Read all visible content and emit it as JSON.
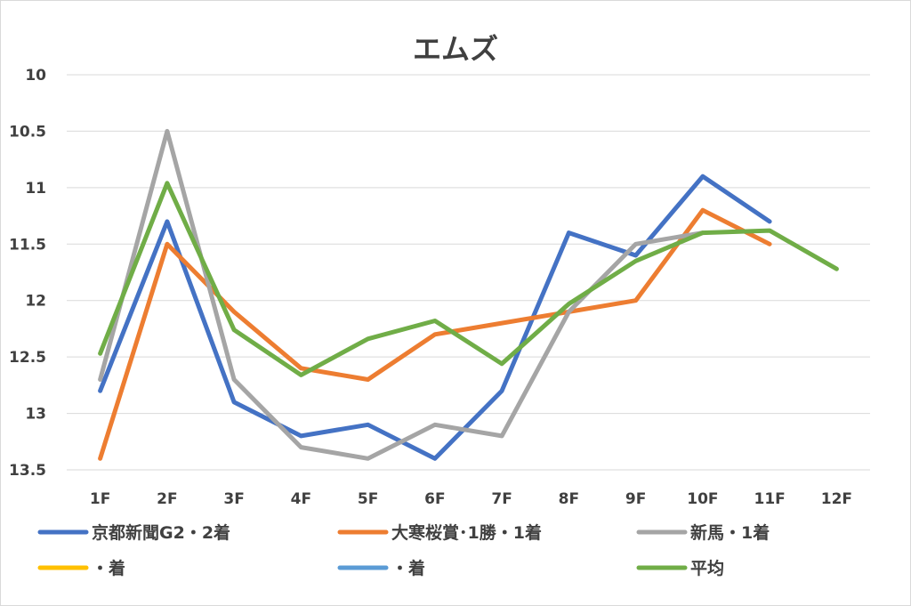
{
  "chart_data": {
    "type": "line",
    "title": "エムズ",
    "xlabel": "",
    "ylabel": "",
    "categories": [
      "1F",
      "2F",
      "3F",
      "4F",
      "5F",
      "6F",
      "7F",
      "8F",
      "9F",
      "10F",
      "11F",
      "12F"
    ],
    "ylim": [
      10,
      13.5
    ],
    "y_inverted": true,
    "y_ticks": [
      "10",
      "10.5",
      "11",
      "11.5",
      "12",
      "12.5",
      "13",
      "13.5"
    ],
    "grid": true,
    "legend_position": "bottom",
    "series": [
      {
        "name": "京都新聞G2・2着",
        "color": "#4472C4",
        "values": [
          12.8,
          11.3,
          12.9,
          13.2,
          13.1,
          13.4,
          12.8,
          11.4,
          11.6,
          10.9,
          11.3,
          null
        ]
      },
      {
        "name": "大寒桜賞･1勝・1着",
        "color": "#ED7D31",
        "values": [
          13.4,
          11.5,
          12.1,
          12.6,
          12.7,
          12.3,
          12.2,
          12.1,
          12.0,
          11.2,
          11.5,
          null
        ]
      },
      {
        "name": "新馬・1着",
        "color": "#A5A5A5",
        "values": [
          12.7,
          10.5,
          12.7,
          13.3,
          13.4,
          13.1,
          13.2,
          12.1,
          11.5,
          11.4,
          null,
          null
        ]
      },
      {
        "name": "・着",
        "color": "#FFC000",
        "values": [
          null,
          null,
          null,
          null,
          null,
          null,
          null,
          null,
          null,
          null,
          null,
          null
        ]
      },
      {
        "name": "・着",
        "color": "#5B9BD5",
        "values": [
          null,
          null,
          null,
          null,
          null,
          null,
          null,
          null,
          null,
          null,
          null,
          null
        ]
      },
      {
        "name": "平均",
        "color": "#70AD47",
        "values": [
          12.47,
          10.96,
          12.26,
          12.66,
          12.34,
          12.18,
          12.56,
          12.03,
          11.65,
          11.4,
          11.38,
          11.72
        ]
      }
    ]
  }
}
